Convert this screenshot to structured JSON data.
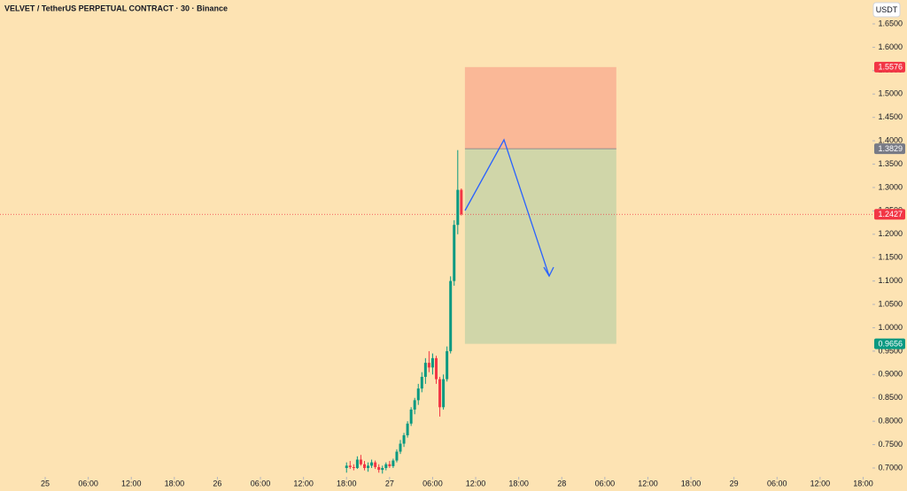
{
  "chart_data": {
    "type": "candlestick",
    "title": "VELVET / TetherUS PERPETUAL CONTRACT · 30 · Binance",
    "currency": "USDT",
    "x": [
      42,
      42.5,
      43,
      43.5,
      44,
      44.5,
      45,
      45.5,
      46,
      46.5,
      47,
      47.5,
      48,
      48.5,
      49,
      49.5,
      50,
      50.5,
      51,
      51.5,
      52,
      52.5,
      53,
      53.5,
      54,
      54.5,
      55,
      55.5,
      56,
      56.5,
      57,
      57.5,
      58
    ],
    "open": [
      0.7,
      0.705,
      0.702,
      0.7,
      0.718,
      0.708,
      0.7,
      0.705,
      0.712,
      0.702,
      0.696,
      0.7,
      0.708,
      0.704,
      0.716,
      0.735,
      0.752,
      0.77,
      0.795,
      0.825,
      0.845,
      0.87,
      0.895,
      0.925,
      0.915,
      0.935,
      0.89,
      0.83,
      0.89,
      0.95,
      1.1,
      1.22,
      1.295
    ],
    "high": [
      0.712,
      0.715,
      0.708,
      0.725,
      0.728,
      0.715,
      0.712,
      0.718,
      0.716,
      0.708,
      0.705,
      0.712,
      0.715,
      0.72,
      0.74,
      0.76,
      0.775,
      0.8,
      0.83,
      0.85,
      0.88,
      0.905,
      0.935,
      0.95,
      0.945,
      0.94,
      0.895,
      0.9,
      0.96,
      1.11,
      1.23,
      1.38,
      1.298
    ],
    "low": [
      0.69,
      0.698,
      0.695,
      0.698,
      0.705,
      0.695,
      0.692,
      0.7,
      0.698,
      0.69,
      0.688,
      0.695,
      0.7,
      0.7,
      0.712,
      0.73,
      0.745,
      0.765,
      0.79,
      0.815,
      0.835,
      0.862,
      0.88,
      0.905,
      0.9,
      0.88,
      0.81,
      0.825,
      0.885,
      0.945,
      1.09,
      1.2,
      1.24
    ],
    "close": [
      0.705,
      0.702,
      0.7,
      0.718,
      0.708,
      0.7,
      0.705,
      0.712,
      0.702,
      0.696,
      0.7,
      0.708,
      0.704,
      0.716,
      0.735,
      0.752,
      0.77,
      0.795,
      0.825,
      0.845,
      0.87,
      0.895,
      0.925,
      0.915,
      0.935,
      0.89,
      0.83,
      0.89,
      0.95,
      1.1,
      1.22,
      1.295,
      1.2427
    ],
    "up_color": "#089981",
    "down_color": "#f23645",
    "xlim": [
      -6.3,
      115.3
    ],
    "xticks": [
      {
        "value": 0,
        "label": "25"
      },
      {
        "value": 6,
        "label": "06:00"
      },
      {
        "value": 12,
        "label": "12:00"
      },
      {
        "value": 18,
        "label": "18:00"
      },
      {
        "value": 24,
        "label": "26"
      },
      {
        "value": 30,
        "label": "06:00"
      },
      {
        "value": 36,
        "label": "12:00"
      },
      {
        "value": 42,
        "label": "18:00"
      },
      {
        "value": 48,
        "label": "27"
      },
      {
        "value": 54,
        "label": "06:00"
      },
      {
        "value": 60,
        "label": "12:00"
      },
      {
        "value": 66,
        "label": "18:00"
      },
      {
        "value": 72,
        "label": "28"
      },
      {
        "value": 78,
        "label": "06:00"
      },
      {
        "value": 84,
        "label": "12:00"
      },
      {
        "value": 90,
        "label": "18:00"
      },
      {
        "value": 96,
        "label": "29"
      },
      {
        "value": 102,
        "label": "06:00"
      },
      {
        "value": 108,
        "label": "12:00"
      },
      {
        "value": 114,
        "label": "18:00"
      }
    ],
    "ylim": [
      0.6508,
      1.7011
    ],
    "yticks": [
      {
        "value": 0.7,
        "label": "0.7000"
      },
      {
        "value": 0.75,
        "label": "0.7500"
      },
      {
        "value": 0.8,
        "label": "0.8000"
      },
      {
        "value": 0.85,
        "label": "0.8500"
      },
      {
        "value": 0.9,
        "label": "0.9000"
      },
      {
        "value": 0.95,
        "label": "0.9500"
      },
      {
        "value": 1.0,
        "label": "1.0000"
      },
      {
        "value": 1.05,
        "label": "1.0500"
      },
      {
        "value": 1.1,
        "label": "1.1000"
      },
      {
        "value": 1.15,
        "label": "1.1500"
      },
      {
        "value": 1.2,
        "label": "1.2000"
      },
      {
        "value": 1.25,
        "label": "1.2500"
      },
      {
        "value": 1.3,
        "label": "1.3000"
      },
      {
        "value": 1.35,
        "label": "1.3500"
      },
      {
        "value": 1.4,
        "label": "1.4000"
      },
      {
        "value": 1.45,
        "label": "1.4500"
      },
      {
        "value": 1.5,
        "label": "1.5000"
      },
      {
        "value": 1.55,
        "label": "1.5500"
      },
      {
        "value": 1.6,
        "label": "1.6000"
      },
      {
        "value": 1.65,
        "label": "1.6500"
      }
    ],
    "last_price": 1.2427,
    "last_price_color": "#f23645",
    "position": {
      "x": [
        58.5,
        79.6
      ],
      "stop": 1.5576,
      "entry": 1.3829,
      "target": 0.9656,
      "stop_color": "#f23645",
      "entry_color": "#787b86",
      "target_color": "#089981"
    }
  }
}
